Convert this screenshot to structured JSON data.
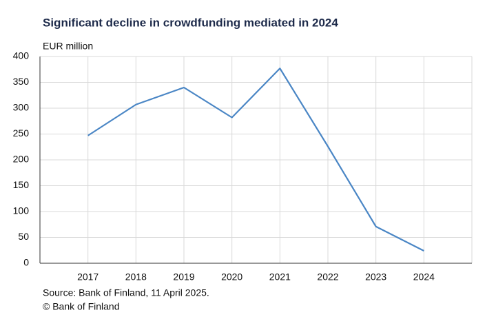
{
  "chart_data": {
    "type": "line",
    "title": "Significant decline in crowdfunding mediated in 2024",
    "y_label": "EUR million",
    "categories": [
      "2017",
      "2018",
      "2019",
      "2020",
      "2021",
      "2022",
      "2023",
      "2024"
    ],
    "series": [
      {
        "name": "Crowdfunding mediated",
        "color": "#4a86c5",
        "values": [
          247,
          307,
          340,
          282,
          377,
          226,
          71,
          24
        ]
      }
    ],
    "ylim": [
      0,
      400
    ],
    "yticks": [
      0,
      50,
      100,
      150,
      200,
      250,
      300,
      350,
      400
    ],
    "grid": true,
    "source": "Source: Bank of Finland, 11 April 2025.",
    "copyright": "© Bank of Finland"
  }
}
